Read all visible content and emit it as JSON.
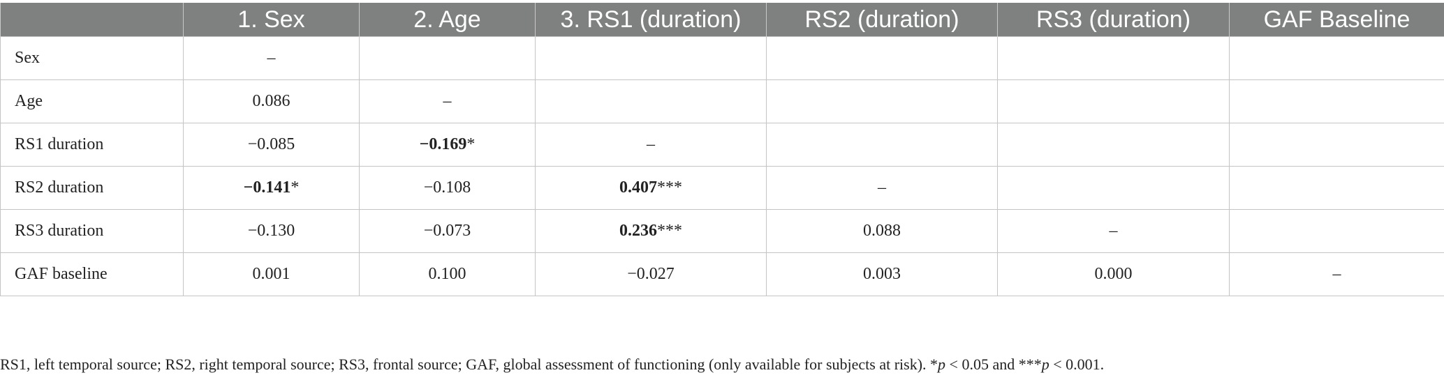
{
  "table": {
    "headers": [
      "",
      "1. Sex",
      "2. Age",
      "3. RS1 (duration)",
      "RS2 (duration)",
      "RS3 (duration)",
      "GAF Baseline"
    ],
    "rows": [
      {
        "label": "Sex",
        "cells": [
          {
            "value": "–",
            "bold": "",
            "sig": ""
          },
          {
            "value": "",
            "bold": "",
            "sig": ""
          },
          {
            "value": "",
            "bold": "",
            "sig": ""
          },
          {
            "value": "",
            "bold": "",
            "sig": ""
          },
          {
            "value": "",
            "bold": "",
            "sig": ""
          },
          {
            "value": "",
            "bold": "",
            "sig": ""
          }
        ]
      },
      {
        "label": "Age",
        "cells": [
          {
            "value": "0.086",
            "bold": "",
            "sig": ""
          },
          {
            "value": "–",
            "bold": "",
            "sig": ""
          },
          {
            "value": "",
            "bold": "",
            "sig": ""
          },
          {
            "value": "",
            "bold": "",
            "sig": ""
          },
          {
            "value": "",
            "bold": "",
            "sig": ""
          },
          {
            "value": "",
            "bold": "",
            "sig": ""
          }
        ]
      },
      {
        "label": "RS1 duration",
        "cells": [
          {
            "value": "−0.085",
            "bold": "",
            "sig": ""
          },
          {
            "value": "",
            "bold": "−0.169",
            "sig": "*"
          },
          {
            "value": "–",
            "bold": "",
            "sig": ""
          },
          {
            "value": "",
            "bold": "",
            "sig": ""
          },
          {
            "value": "",
            "bold": "",
            "sig": ""
          },
          {
            "value": "",
            "bold": "",
            "sig": ""
          }
        ]
      },
      {
        "label": "RS2 duration",
        "cells": [
          {
            "value": "",
            "bold": "−0.141",
            "sig": "*"
          },
          {
            "value": "−0.108",
            "bold": "",
            "sig": ""
          },
          {
            "value": "",
            "bold": "0.407",
            "sig": "***"
          },
          {
            "value": "–",
            "bold": "",
            "sig": ""
          },
          {
            "value": "",
            "bold": "",
            "sig": ""
          },
          {
            "value": "",
            "bold": "",
            "sig": ""
          }
        ]
      },
      {
        "label": "RS3 duration",
        "cells": [
          {
            "value": "−0.130",
            "bold": "",
            "sig": ""
          },
          {
            "value": "−0.073",
            "bold": "",
            "sig": ""
          },
          {
            "value": "",
            "bold": "0.236",
            "sig": "***"
          },
          {
            "value": "0.088",
            "bold": "",
            "sig": ""
          },
          {
            "value": "–",
            "bold": "",
            "sig": ""
          },
          {
            "value": "",
            "bold": "",
            "sig": ""
          }
        ]
      },
      {
        "label": "GAF baseline",
        "cells": [
          {
            "value": "0.001",
            "bold": "",
            "sig": ""
          },
          {
            "value": "0.100",
            "bold": "",
            "sig": ""
          },
          {
            "value": "−0.027",
            "bold": "",
            "sig": ""
          },
          {
            "value": "0.003",
            "bold": "",
            "sig": ""
          },
          {
            "value": "0.000",
            "bold": "",
            "sig": ""
          },
          {
            "value": "–",
            "bold": "",
            "sig": ""
          }
        ]
      }
    ]
  },
  "footnote": {
    "text": "RS1, left temporal source; RS2, right temporal source; RS3, frontal source; GAF, global assessment of functioning (only available for subjects at risk). *",
    "p1_var": "p",
    "p1_rest": " < 0.05 and ***",
    "p2_var": "p",
    "p2_rest": " < 0.001."
  }
}
